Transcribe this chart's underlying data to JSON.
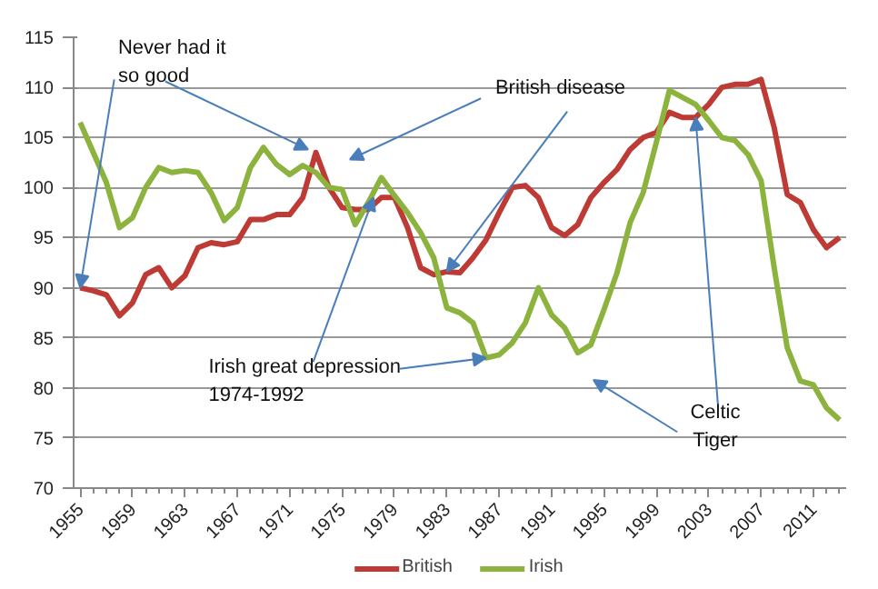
{
  "chart_data": {
    "type": "line",
    "x": [
      1955,
      1956,
      1957,
      1958,
      1959,
      1960,
      1961,
      1962,
      1963,
      1964,
      1965,
      1966,
      1967,
      1968,
      1969,
      1970,
      1971,
      1972,
      1973,
      1974,
      1975,
      1976,
      1977,
      1978,
      1979,
      1980,
      1981,
      1982,
      1983,
      1984,
      1985,
      1986,
      1987,
      1988,
      1989,
      1990,
      1991,
      1992,
      1993,
      1994,
      1995,
      1996,
      1997,
      1998,
      1999,
      2000,
      2001,
      2002,
      2003,
      2004,
      2005,
      2006,
      2007,
      2008,
      2009,
      2010,
      2011,
      2012,
      2013
    ],
    "series": [
      {
        "name": "British",
        "color": "#be3a34",
        "values": [
          90,
          89.7,
          89.3,
          87.2,
          88.5,
          91.3,
          92,
          90,
          91.2,
          94,
          94.5,
          94.3,
          94.6,
          96.8,
          96.8,
          97.3,
          97.3,
          99,
          103.5,
          100,
          98,
          97.8,
          97.8,
          99,
          99,
          96,
          92,
          91.3,
          91.6,
          91.5,
          93,
          94.8,
          97.5,
          100,
          100.2,
          99,
          96,
          95.2,
          96.3,
          99,
          100.5,
          101.8,
          103.8,
          105,
          105.5,
          107.5,
          107,
          107,
          108.3,
          110,
          110.3,
          110.3,
          110.8,
          106,
          99.3,
          98.5,
          95.8,
          94,
          95
        ]
      },
      {
        "name": "Irish",
        "color": "#8db33f",
        "values": [
          106.5,
          103.5,
          100.5,
          96,
          97,
          100,
          102,
          101.5,
          101.7,
          101.5,
          99.5,
          96.7,
          98,
          102,
          104,
          102.3,
          101.3,
          102.2,
          101.5,
          100,
          99.8,
          96.3,
          98.5,
          101,
          99.2,
          97.5,
          95.5,
          93,
          88,
          87.5,
          86.5,
          83,
          83.3,
          84.5,
          86.5,
          90,
          87.3,
          86,
          83.5,
          84.3,
          87.8,
          91.5,
          96.5,
          99.5,
          104.5,
          109.7,
          109,
          108.3,
          106.7,
          105,
          104.7,
          103.3,
          100.7,
          92,
          84,
          80.7,
          80.3,
          78,
          76.8
        ]
      }
    ],
    "xlim": [
      1954.5,
      2013.5
    ],
    "xticks": [
      1955,
      1959,
      1963,
      1967,
      1971,
      1975,
      1979,
      1983,
      1987,
      1991,
      1995,
      1999,
      2003,
      2007,
      2011
    ],
    "ylim": [
      70,
      115
    ],
    "yticks": [
      70,
      75,
      80,
      85,
      90,
      95,
      100,
      105,
      110,
      115
    ],
    "grid": "y",
    "legend": "bottom",
    "marker": "none",
    "line_style": "solid",
    "annotations": [
      {
        "text": "Never had it\nso good",
        "x": 1955,
        "y": 90
      },
      {
        "text": "British disease",
        "x": 1983,
        "y": 91.6
      },
      {
        "text": "Irish great depression\n1974-1992",
        "x": 1986,
        "y": 83
      },
      {
        "text": "Celtic\nTiger",
        "x": 2002,
        "y": 107
      }
    ]
  }
}
